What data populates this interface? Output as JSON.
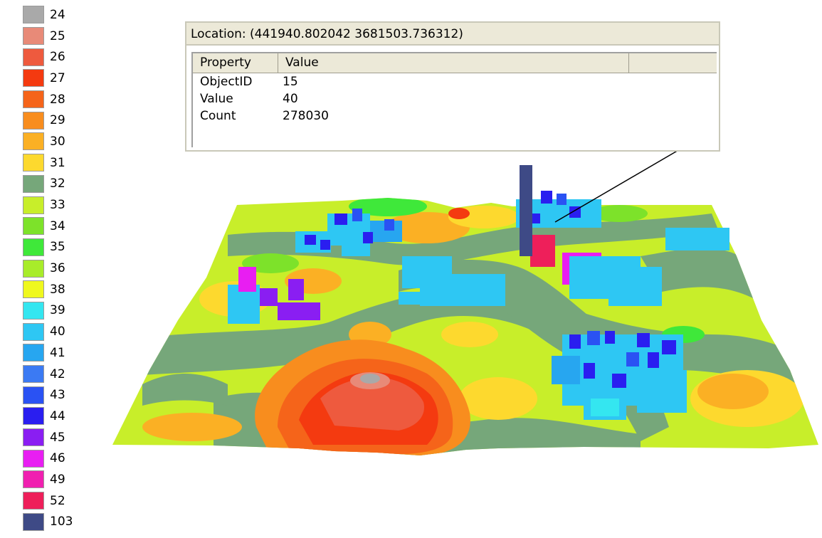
{
  "legend": {
    "items": [
      {
        "label": "24",
        "color": "#a9a9a9"
      },
      {
        "label": "25",
        "color": "#e88a78"
      },
      {
        "label": "26",
        "color": "#ee5a3e"
      },
      {
        "label": "27",
        "color": "#f43a10"
      },
      {
        "label": "28",
        "color": "#f5641a"
      },
      {
        "label": "29",
        "color": "#f88d1e"
      },
      {
        "label": "30",
        "color": "#fbb024"
      },
      {
        "label": "31",
        "color": "#fdd92e"
      },
      {
        "label": "32",
        "color": "#76a77a"
      },
      {
        "label": "33",
        "color": "#c8ee2a"
      },
      {
        "label": "34",
        "color": "#7de22a"
      },
      {
        "label": "35",
        "color": "#3fe83a"
      },
      {
        "label": "36",
        "color": "#a8ec2a"
      },
      {
        "label": "38",
        "color": "#eff81e"
      },
      {
        "label": "39",
        "color": "#34e6f0"
      },
      {
        "label": "40",
        "color": "#2ec7f3"
      },
      {
        "label": "41",
        "color": "#27a6f0"
      },
      {
        "label": "42",
        "color": "#3b7af3"
      },
      {
        "label": "43",
        "color": "#2a52f3"
      },
      {
        "label": "44",
        "color": "#2a1ef0"
      },
      {
        "label": "45",
        "color": "#8a1ef2"
      },
      {
        "label": "46",
        "color": "#e81ef2"
      },
      {
        "label": "49",
        "color": "#f020b0"
      },
      {
        "label": "52",
        "color": "#ee1f5a"
      },
      {
        "label": "103",
        "color": "#3e4a86"
      }
    ]
  },
  "identify": {
    "location_label": "Location: (441940.802042 3681503.736312)",
    "columns": [
      "Property",
      "Value"
    ],
    "rows": [
      {
        "property": "ObjectID",
        "value": "15"
      },
      {
        "property": "Value",
        "value": "40"
      },
      {
        "property": "Count",
        "value": "278030"
      }
    ]
  }
}
